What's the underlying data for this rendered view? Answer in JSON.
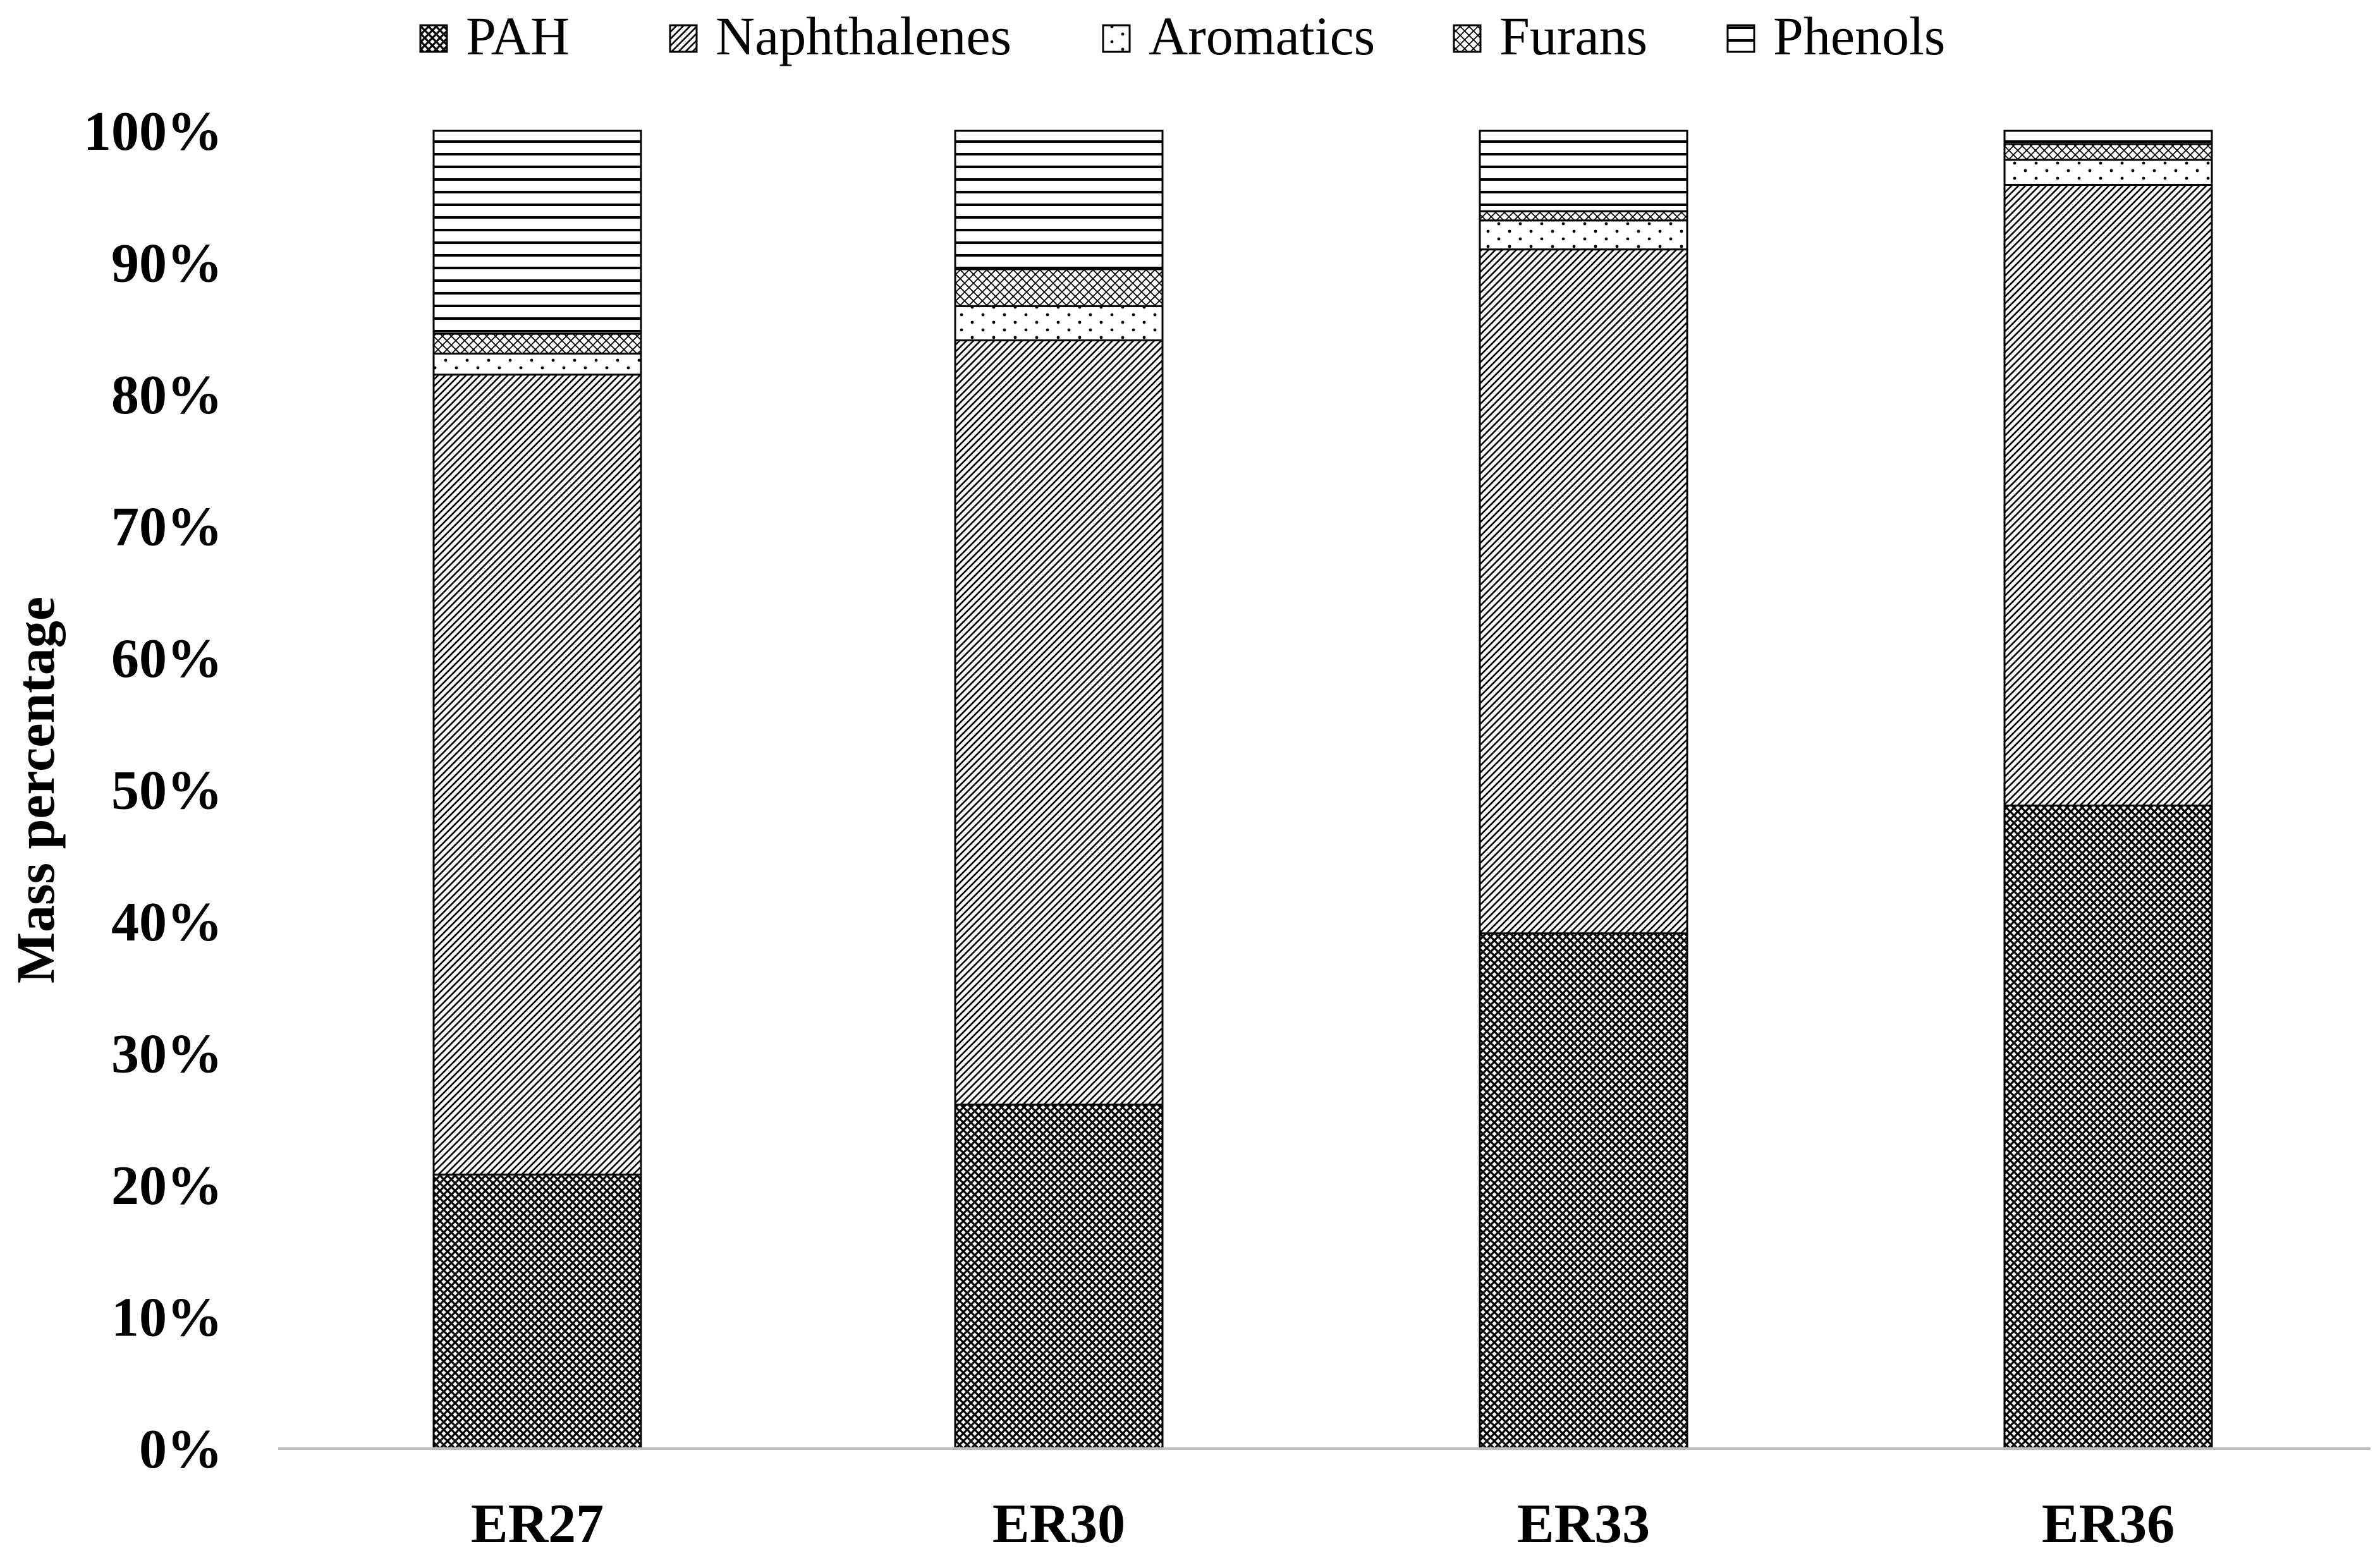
{
  "chart_data": {
    "type": "bar",
    "stacked": "percent",
    "categories": [
      "ER27",
      "ER30",
      "ER33",
      "ER36"
    ],
    "series": [
      {
        "name": "PAH",
        "pattern": "crosshatch-dense",
        "values": [
          20.8,
          26.1,
          39.1,
          48.8
        ]
      },
      {
        "name": "Naphthalenes",
        "pattern": "diagonal-dense",
        "values": [
          60.7,
          58.0,
          51.9,
          47.1
        ]
      },
      {
        "name": "Aromatics",
        "pattern": "dots",
        "values": [
          1.6,
          2.6,
          2.2,
          1.9
        ]
      },
      {
        "name": "Furans",
        "pattern": "crosshatch-light",
        "values": [
          1.5,
          2.8,
          0.7,
          1.2
        ]
      },
      {
        "name": "Phenols",
        "pattern": "horizontal-lines",
        "values": [
          15.4,
          10.5,
          6.1,
          1.0
        ]
      }
    ],
    "ylabel": "Mass percentage",
    "xlabel": "",
    "ylim": [
      0,
      100
    ],
    "yticks": [
      "0%",
      "10%",
      "20%",
      "30%",
      "40%",
      "50%",
      "60%",
      "70%",
      "80%",
      "90%",
      "100%"
    ],
    "legend_position": "top",
    "grid": false,
    "colors": {
      "ink": "#000000",
      "axis": "#bfbfbf",
      "background": "#ffffff"
    }
  }
}
